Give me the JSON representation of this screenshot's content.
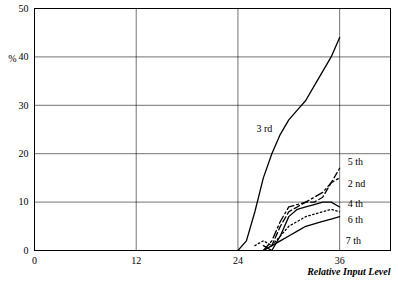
{
  "chart_data": {
    "type": "line",
    "xlabel": "Relative Input Level",
    "ylabel": "%",
    "x": [
      24,
      25,
      26,
      27,
      28,
      29,
      30,
      31,
      32,
      33,
      34,
      35,
      36
    ],
    "xlim": [
      0,
      42
    ],
    "xticks": [
      0,
      12,
      24,
      36
    ],
    "ylim": [
      0,
      50
    ],
    "yticks": [
      0,
      10,
      20,
      30,
      40,
      50
    ],
    "grid": true,
    "series": [
      {
        "name": "3 rd",
        "color": "#000000",
        "line_style": "solid",
        "values": [
          0,
          2,
          8,
          15,
          20,
          24,
          27,
          29,
          31,
          34,
          37,
          40,
          44
        ]
      },
      {
        "name": "5 th",
        "color": "#000000",
        "line_style": "dashed",
        "values": [
          null,
          null,
          null,
          0,
          1,
          5,
          8,
          9,
          10,
          10,
          11,
          14,
          17
        ]
      },
      {
        "name": "2 nd",
        "color": "#000000",
        "line_style": "dashdot",
        "values": [
          null,
          null,
          null,
          0,
          2,
          6,
          9,
          9.5,
          10,
          11,
          12,
          14,
          15
        ]
      },
      {
        "name": "4 th",
        "color": "#000000",
        "line_style": "solid",
        "values": [
          null,
          null,
          null,
          1,
          0,
          3,
          7,
          8.5,
          9,
          9.5,
          10,
          10,
          9
        ]
      },
      {
        "name": "6 th",
        "color": "#000000",
        "line_style": "dotted",
        "values": [
          null,
          null,
          1,
          2,
          1,
          3,
          5,
          6,
          7,
          7.5,
          8,
          8.5,
          8
        ]
      },
      {
        "name": "7 th",
        "color": "#000000",
        "line_style": "solid",
        "values": [
          null,
          null,
          null,
          0,
          1,
          2,
          3,
          4,
          5,
          5.5,
          6,
          6.5,
          7
        ]
      }
    ]
  }
}
